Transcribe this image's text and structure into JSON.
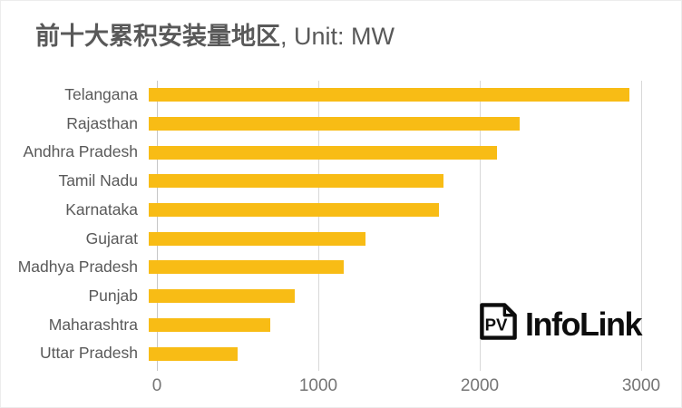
{
  "title": {
    "main": "前十大累积安装量地区",
    "suffix": ", Unit: MW"
  },
  "branding": {
    "icon_text": "PV",
    "name": "InfoLink"
  },
  "colors": {
    "bar": "#F8BC15",
    "title_text": "#595959",
    "category_text": "#595959",
    "axis_text": "#757575",
    "gridline": "#D8D8D8",
    "logo": "#0D0D0D"
  },
  "chart_data": {
    "type": "bar",
    "orientation": "horizontal",
    "title": "前十大累积安装量地区, Unit: MW",
    "unit": "MW",
    "categories": [
      "Telangana",
      "Rajasthan",
      "Andhra Pradesh",
      "Tamil Nadu",
      "Karnataka",
      "Gujarat",
      "Madhya Pradesh",
      "Punjab",
      "Maharashtra",
      "Uttar Pradesh"
    ],
    "values": [
      2980,
      2300,
      2160,
      1825,
      1800,
      1345,
      1210,
      905,
      755,
      550
    ],
    "xlabel": "",
    "ylabel": "",
    "xlim": [
      0,
      3000
    ],
    "xticks": [
      0,
      1000,
      2000,
      3000
    ],
    "grid": true,
    "legend": false
  }
}
